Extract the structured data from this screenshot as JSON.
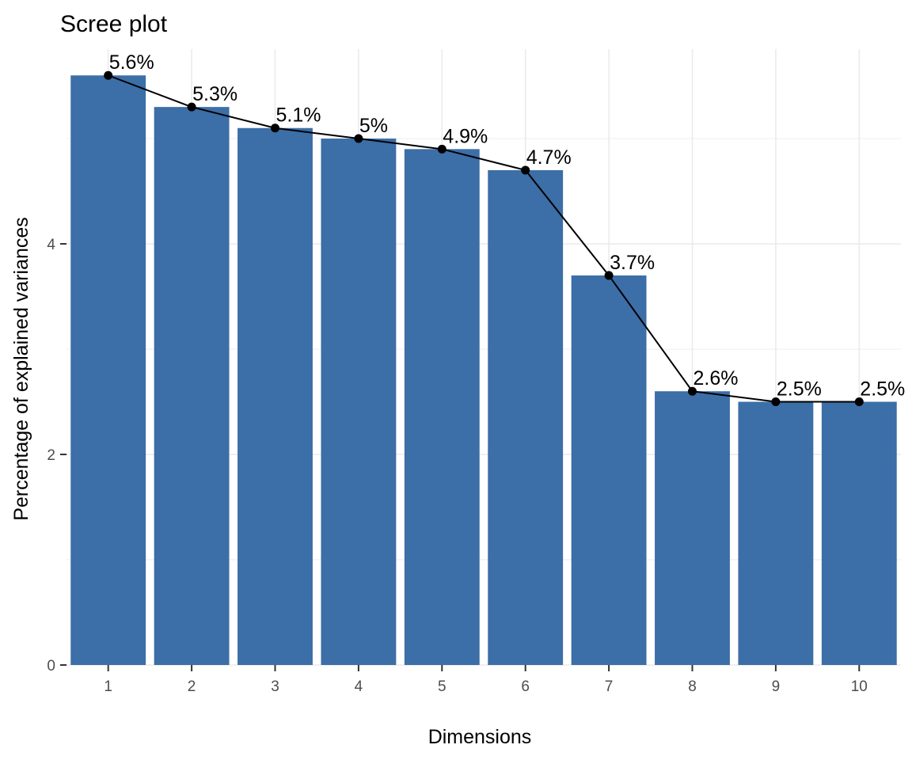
{
  "chart_data": {
    "type": "bar",
    "title": "Scree plot",
    "xlabel": "Dimensions",
    "ylabel": "Percentage of explained variances",
    "categories": [
      "1",
      "2",
      "3",
      "4",
      "5",
      "6",
      "7",
      "8",
      "9",
      "10"
    ],
    "values": [
      5.6,
      5.3,
      5.1,
      5.0,
      4.9,
      4.7,
      3.7,
      2.6,
      2.5,
      2.5
    ],
    "data_labels": [
      "5.6%",
      "5.3%",
      "5.1%",
      "5%",
      "4.9%",
      "4.7%",
      "3.7%",
      "2.6%",
      "2.5%",
      "2.5%"
    ],
    "y_ticks": [
      0,
      2,
      4
    ],
    "y_tick_labels": [
      "0",
      "2",
      "4"
    ],
    "ylim": [
      0,
      5.85
    ],
    "overlay": "line-with-points",
    "grid": true,
    "legend": "none",
    "colors": {
      "bar": "#3C6EA7",
      "line": "#000000",
      "grid": "#EBEBEB",
      "background": "#FFFFFF"
    }
  }
}
